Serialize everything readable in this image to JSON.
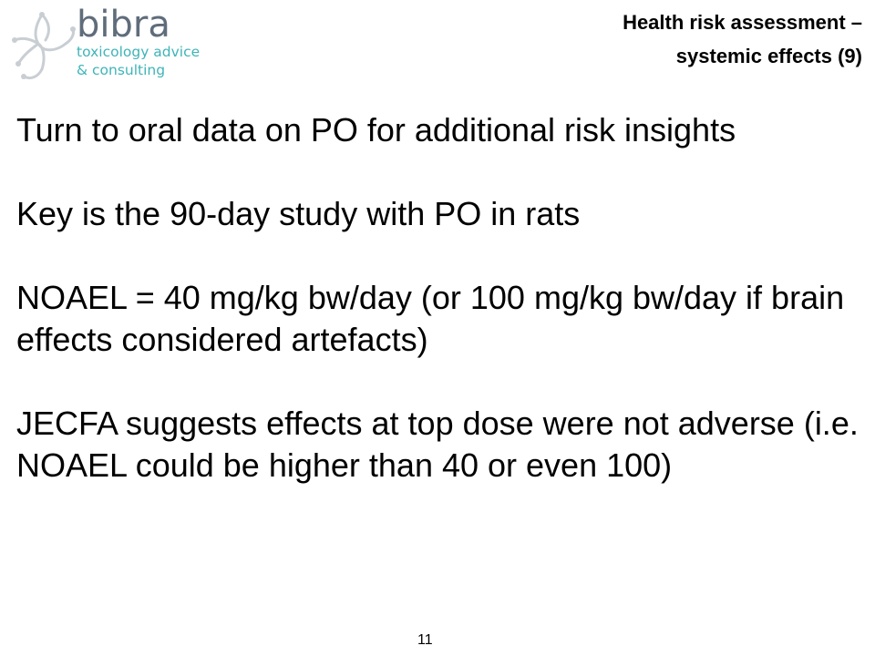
{
  "logo": {
    "name": "bibra",
    "tagline_line1": "toxicology advice",
    "tagline_line2": "& consulting",
    "brand_gray": "#5f6c7b",
    "brand_teal": "#3fb4b8"
  },
  "header": {
    "title_line1": "Health risk assessment –",
    "title_line2": "systemic effects (9)"
  },
  "body": {
    "paragraphs": [
      "Turn to oral data on PO for additional risk insights",
      "Key is the 90-day study with PO in rats",
      "NOAEL = 40 mg/kg bw/day (or 100 mg/kg bw/day if brain effects considered artefacts)",
      "JECFA suggests effects at top dose were not adverse (i.e. NOAEL could be higher than 40 or even 100)"
    ]
  },
  "footer": {
    "page_number": "11"
  }
}
